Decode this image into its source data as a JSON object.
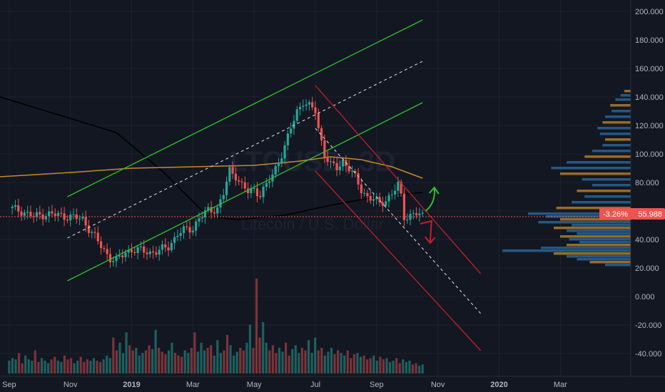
{
  "colors": {
    "background": "#131722",
    "grid": "#1e222d",
    "up_candle": "#26a69a",
    "down_candle": "#ef5350",
    "up_volume": "#1f6e6a",
    "down_volume": "#8e3a3d",
    "channel_green": "#2cc22c",
    "channel_red": "#c21f2a",
    "ma_black": "#000000",
    "ma_orange": "#c58a2a",
    "median_dashed": "#d1d4dc",
    "price_line": "#ef5350",
    "volume_profile": "#2d6fa6",
    "volume_profile_accent": "#c58a2a",
    "axis_text": "#b2b5be"
  },
  "watermark": {
    "symbol": "LTCUSD, 3D",
    "description": "Litecoin / U.S. Dollar"
  },
  "price_label": {
    "change": "-3.26%",
    "price": "55.988"
  },
  "chart_data": {
    "type": "candlestick",
    "title": "",
    "x_ticks": [
      "Sep",
      "Nov",
      "2019",
      "Mar",
      "May",
      "Jul",
      "Sep",
      "Nov",
      "2020",
      "Mar"
    ],
    "x_tick_months": [
      0,
      2,
      4,
      6,
      8,
      10,
      12,
      14,
      16,
      18
    ],
    "y_ticks": [
      "200.000",
      "180.000",
      "160.000",
      "140.000",
      "120.000",
      "100.000",
      "80.000",
      "60.000",
      "40.000",
      "20.000",
      "0.000",
      "-20.000",
      "-40.000"
    ],
    "y_tick_values": [
      200,
      180,
      160,
      140,
      120,
      100,
      80,
      60,
      40,
      20,
      0,
      -20,
      -40
    ],
    "ylim": [
      -56,
      208
    ],
    "xlim_months": [
      -0.3,
      20.3
    ],
    "last_price": 55.988,
    "close_series": [
      [
        0.0,
        62
      ],
      [
        0.4,
        60
      ],
      [
        0.8,
        56
      ],
      [
        1.2,
        58
      ],
      [
        1.6,
        57
      ],
      [
        2.0,
        56
      ],
      [
        2.4,
        54
      ],
      [
        2.7,
        45
      ],
      [
        3.0,
        35
      ],
      [
        3.3,
        27
      ],
      [
        3.5,
        25
      ],
      [
        3.8,
        31
      ],
      [
        4.0,
        33
      ],
      [
        4.3,
        32
      ],
      [
        4.6,
        31
      ],
      [
        4.9,
        32
      ],
      [
        5.2,
        35
      ],
      [
        5.5,
        44
      ],
      [
        5.8,
        47
      ],
      [
        6.0,
        48
      ],
      [
        6.2,
        55
      ],
      [
        6.5,
        60
      ],
      [
        6.8,
        62
      ],
      [
        7.0,
        72
      ],
      [
        7.2,
        88
      ],
      [
        7.4,
        85
      ],
      [
        7.6,
        78
      ],
      [
        7.8,
        73
      ],
      [
        8.0,
        75
      ],
      [
        8.2,
        72
      ],
      [
        8.4,
        78
      ],
      [
        8.6,
        85
      ],
      [
        8.8,
        95
      ],
      [
        9.0,
        105
      ],
      [
        9.2,
        118
      ],
      [
        9.4,
        130
      ],
      [
        9.6,
        137
      ],
      [
        9.8,
        133
      ],
      [
        10.0,
        130
      ],
      [
        10.1,
        118
      ],
      [
        10.3,
        100
      ],
      [
        10.5,
        92
      ],
      [
        10.7,
        90
      ],
      [
        10.9,
        95
      ],
      [
        11.1,
        90
      ],
      [
        11.3,
        83
      ],
      [
        11.5,
        75
      ],
      [
        11.7,
        70
      ],
      [
        11.9,
        68
      ],
      [
        12.1,
        65
      ],
      [
        12.3,
        68
      ],
      [
        12.5,
        72
      ],
      [
        12.7,
        78
      ],
      [
        12.8,
        70
      ],
      [
        12.9,
        56
      ],
      [
        13.1,
        57
      ],
      [
        13.3,
        58
      ],
      [
        13.5,
        56
      ]
    ],
    "moving_averages": [
      {
        "name": "",
        "color": "#000000",
        "points": [
          [
            -0.3,
            140
          ],
          [
            3.5,
            115
          ],
          [
            5.0,
            88
          ],
          [
            6.5,
            56
          ],
          [
            7.5,
            54
          ],
          [
            9.0,
            57
          ],
          [
            10.5,
            64
          ],
          [
            11.5,
            68
          ],
          [
            12.5,
            71
          ],
          [
            13.5,
            73
          ]
        ]
      },
      {
        "name": "",
        "color": "#c58a2a",
        "points": [
          [
            -0.3,
            84
          ],
          [
            2.0,
            87
          ],
          [
            4.0,
            90
          ],
          [
            6.0,
            91
          ],
          [
            8.0,
            92
          ],
          [
            9.5,
            95
          ],
          [
            10.5,
            98
          ],
          [
            11.5,
            96
          ],
          [
            12.5,
            91
          ],
          [
            13.5,
            83
          ]
        ]
      }
    ],
    "channels": [
      {
        "color": "#2cc22c",
        "lines": [
          [
            [
              1.9,
              70
            ],
            [
              13.5,
              194
            ]
          ],
          [
            [
              1.9,
              11
            ],
            [
              13.5,
              136
            ]
          ]
        ],
        "median": [
          [
            1.9,
            41
          ],
          [
            13.5,
            165
          ]
        ]
      },
      {
        "color": "#c21f2a",
        "lines": [
          [
            [
              10.0,
              148
            ],
            [
              15.4,
              16
            ]
          ],
          [
            [
              10.0,
              88
            ],
            [
              15.4,
              -38
            ]
          ]
        ],
        "median": [
          [
            10.0,
            118
          ],
          [
            15.4,
            -12
          ]
        ]
      }
    ],
    "arrows": [
      {
        "direction": "up",
        "color": "#2cc22c"
      },
      {
        "direction": "down",
        "color": "#c21f2a"
      }
    ],
    "volume_profile": [
      [
        144,
        0.05
      ],
      [
        141,
        0.08
      ],
      [
        138,
        0.12
      ],
      [
        134,
        0.16
      ],
      [
        130,
        0.15
      ],
      [
        126,
        0.2
      ],
      [
        122,
        0.22
      ],
      [
        118,
        0.26
      ],
      [
        114,
        0.24
      ],
      [
        110,
        0.2
      ],
      [
        106,
        0.22
      ],
      [
        102,
        0.3
      ],
      [
        98,
        0.36
      ],
      [
        94,
        0.5
      ],
      [
        90,
        0.62
      ],
      [
        86,
        0.55
      ],
      [
        82,
        0.38
      ],
      [
        78,
        0.3
      ],
      [
        74,
        0.42
      ],
      [
        70,
        0.36
      ],
      [
        66,
        0.46
      ],
      [
        62,
        0.58
      ],
      [
        58,
        0.8
      ],
      [
        56,
        0.66
      ],
      [
        54,
        0.55
      ],
      [
        52,
        0.72
      ],
      [
        50,
        0.46
      ],
      [
        48,
        0.6
      ],
      [
        46,
        0.5
      ],
      [
        44,
        0.42
      ],
      [
        42,
        0.55
      ],
      [
        40,
        0.48
      ],
      [
        38,
        0.4
      ],
      [
        36,
        0.5
      ],
      [
        34,
        0.7
      ],
      [
        32,
        1.0
      ],
      [
        30,
        0.6
      ],
      [
        28,
        0.5
      ],
      [
        26,
        0.42
      ],
      [
        24,
        0.32
      ],
      [
        22,
        0.2
      ]
    ],
    "volume_bars": [
      0.5,
      0.6,
      0.55,
      0.8,
      0.4,
      0.7,
      0.55,
      0.5,
      0.9,
      0.45,
      0.6,
      0.5,
      0.4,
      0.55,
      0.65,
      0.5,
      0.45,
      0.7,
      0.55,
      0.6,
      0.4,
      0.5,
      0.65,
      0.45,
      0.55,
      0.5,
      0.6,
      0.5,
      0.45,
      0.55,
      0.7,
      0.6,
      1.4,
      0.9,
      1.2,
      0.8,
      1.6,
      1.1,
      0.9,
      1.0,
      0.7,
      0.8,
      0.9,
      1.1,
      0.95,
      1.7,
      1.0,
      0.85,
      0.75,
      0.9,
      1.2,
      0.8,
      0.7,
      0.65,
      0.9,
      0.8,
      1.0,
      1.6,
      0.85,
      1.2,
      0.9,
      1.0,
      1.1,
      0.7,
      1.3,
      0.8,
      0.9,
      1.5,
      1.1,
      0.7,
      0.85,
      1.0,
      0.9,
      1.2,
      1.9,
      1.0,
      3.7,
      1.4,
      2.0,
      1.2,
      0.9,
      1.1,
      0.8,
      1.0,
      0.85,
      1.2,
      0.7,
      0.95,
      1.1,
      0.8,
      1.0,
      0.9,
      1.3,
      0.8,
      1.4,
      0.9,
      1.0,
      0.7,
      0.85,
      1.0,
      0.75,
      0.9,
      0.8,
      0.7,
      0.9,
      0.6,
      0.75,
      0.8,
      0.65,
      0.7,
      0.55,
      0.6,
      0.7,
      0.5,
      0.65,
      0.55,
      0.6,
      0.45,
      0.5,
      0.6,
      0.4,
      0.55,
      0.45,
      0.5,
      0.35,
      0.4,
      0.3,
      0.35
    ]
  }
}
